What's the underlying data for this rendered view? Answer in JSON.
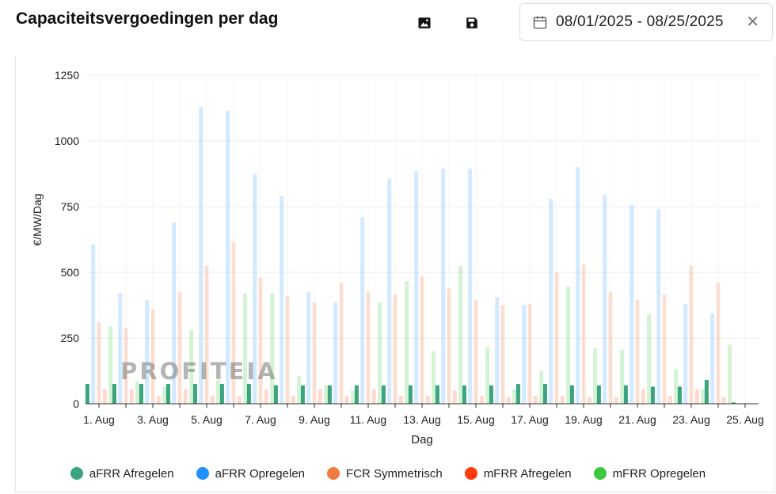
{
  "header": {
    "title": "Capaciteitsvergoedingen per dag",
    "image_icon": "image-icon",
    "save_icon": "save-icon"
  },
  "date_range": {
    "value": "08/01/2025 - 08/25/2025",
    "calendar_icon": "calendar-icon",
    "clear_label": "✕"
  },
  "watermark": "PROFITEIA",
  "chart_data": {
    "type": "bar",
    "ylabel": "€/MW/Dag",
    "xlabel": "Dag",
    "ylim": [
      0,
      1250
    ],
    "yticks": [
      0,
      250,
      500,
      750,
      1000,
      1250
    ],
    "grid": true,
    "legend_position": "bottom",
    "categories": [
      "1. Aug",
      "2. Aug",
      "3. Aug",
      "4. Aug",
      "5. Aug",
      "6. Aug",
      "7. Aug",
      "8. Aug",
      "9. Aug",
      "10. Aug",
      "11. Aug",
      "12. Aug",
      "13. Aug",
      "14. Aug",
      "15. Aug",
      "16. Aug",
      "17. Aug",
      "18. Aug",
      "19. Aug",
      "20. Aug",
      "21. Aug",
      "22. Aug",
      "23. Aug",
      "24. Aug",
      "25. Aug"
    ],
    "tick_labels": [
      "1. Aug",
      "3. Aug",
      "5. Aug",
      "7. Aug",
      "9. Aug",
      "11. Aug",
      "13. Aug",
      "15. Aug",
      "17. Aug",
      "19. Aug",
      "21. Aug",
      "23. Aug",
      "25. Aug"
    ],
    "series": [
      {
        "name": "aFRR Afregelen",
        "color": "#3aa380",
        "opacity": 1.0,
        "values": [
          75,
          75,
          75,
          75,
          75,
          75,
          75,
          70,
          70,
          70,
          70,
          70,
          70,
          70,
          70,
          70,
          75,
          75,
          70,
          70,
          70,
          65,
          65,
          90,
          5
        ]
      },
      {
        "name": "aFRR Opregelen",
        "color": "#1e90ff",
        "opacity": 0.2,
        "values": [
          605,
          420,
          395,
          690,
          1130,
          1115,
          875,
          790,
          425,
          385,
          710,
          855,
          885,
          895,
          895,
          405,
          375,
          780,
          900,
          795,
          755,
          740,
          380,
          345,
          0
        ]
      },
      {
        "name": "FCR Symmetrisch",
        "color": "#f07a40",
        "opacity": 0.22,
        "values": [
          310,
          290,
          360,
          425,
          525,
          615,
          480,
          410,
          385,
          460,
          425,
          415,
          485,
          440,
          395,
          375,
          380,
          500,
          530,
          425,
          395,
          415,
          525,
          460,
          0
        ]
      },
      {
        "name": "mFRR Afregelen",
        "color": "#ff3b0a",
        "opacity": 0.2,
        "values": [
          55,
          55,
          30,
          55,
          30,
          30,
          55,
          30,
          55,
          30,
          55,
          30,
          30,
          50,
          30,
          25,
          30,
          30,
          25,
          25,
          55,
          30,
          55,
          25,
          0
        ]
      },
      {
        "name": "mFRR Opregelen",
        "color": "#3cc83c",
        "opacity": 0.22,
        "values": [
          295,
          85,
          65,
          280,
          90,
          420,
          420,
          105,
          70,
          50,
          385,
          465,
          200,
          525,
          215,
          55,
          125,
          445,
          210,
          205,
          340,
          130,
          55,
          225,
          0
        ]
      }
    ]
  }
}
